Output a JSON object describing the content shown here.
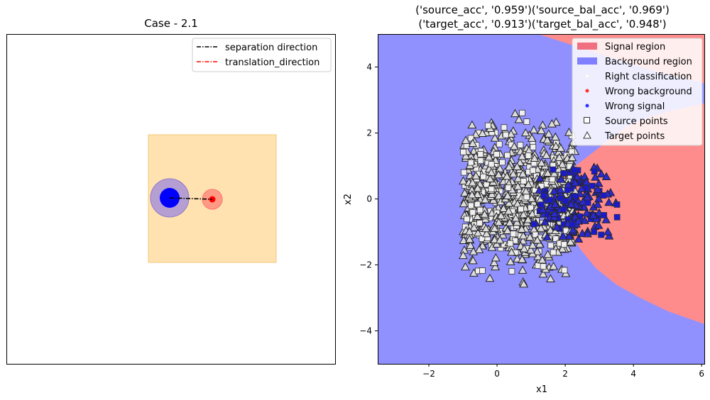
{
  "chart_data": [
    {
      "type": "diagram",
      "title": "Case - 2.1",
      "legend": {
        "placement": "upper-right",
        "entries": [
          {
            "label": "separation direction",
            "color": "#000000",
            "style": "dash-dot"
          },
          {
            "label": "translation_direction",
            "color": "#ff0000",
            "style": "dash-dot"
          }
        ]
      },
      "colors": {
        "square": "#ffe2b0",
        "source_circle": "#0000ff",
        "source_halo": "#b0a0d0",
        "target_circle": "#ff0000",
        "target_halo": "#ff9f9f"
      }
    },
    {
      "type": "scatter",
      "title_line1": "('source_acc', '0.959')('source_bal_acc', '0.969')",
      "title_line2": "('target_acc', '0.913')('target_bal_acc', '0.948')",
      "xlabel": "x1",
      "ylabel": "x2",
      "xlim": [
        -3.5,
        6.1
      ],
      "ylim": [
        -5,
        5
      ],
      "xticks": [
        -2,
        0,
        2,
        4,
        6
      ],
      "yticks": [
        -4,
        -2,
        0,
        2,
        4
      ],
      "background_region_color": "#9090ff",
      "signal_region_color": "#ff8c8c",
      "signal_region_boundary": [
        [
          1.2,
          5
        ],
        [
          4.5,
          3.9
        ],
        [
          6.1,
          3.5
        ],
        [
          6.1,
          -3.8
        ],
        [
          5.0,
          -3.4
        ],
        [
          4.2,
          -3.0
        ],
        [
          3.5,
          -2.6
        ],
        [
          2.9,
          -2.1
        ],
        [
          2.5,
          -1.6
        ],
        [
          2.1,
          -1.0
        ],
        [
          1.7,
          -0.3
        ],
        [
          1.6,
          0.3
        ],
        [
          1.8,
          0.6
        ],
        [
          2.3,
          1.0
        ],
        [
          2.8,
          1.4
        ],
        [
          3.3,
          1.8
        ],
        [
          3.8,
          2.2
        ],
        [
          4.5,
          2.5
        ],
        [
          5.2,
          2.7
        ],
        [
          6.1,
          2.9
        ],
        [
          6.1,
          5
        ]
      ],
      "legend": {
        "placement": "upper-right",
        "entries": [
          {
            "label": "Signal region",
            "marker": "patch",
            "color": "#f07080"
          },
          {
            "label": "Background region",
            "marker": "patch",
            "color": "#7f7fff"
          },
          {
            "label": "Right classification",
            "marker": "dot",
            "color": "#ffffff"
          },
          {
            "label": "Wrong background",
            "marker": "dot",
            "color": "#ff3030"
          },
          {
            "label": "Wrong signal",
            "marker": "dot",
            "color": "#3030ff"
          },
          {
            "label": "Source points",
            "marker": "square",
            "color": "#ffffff"
          },
          {
            "label": "Target points",
            "marker": "triangle",
            "color": "#ffffff"
          }
        ]
      },
      "clusters": [
        {
          "name": "background",
          "center": [
            0.5,
            0.0
          ],
          "x_range": [
            -1.0,
            2.3
          ],
          "y_range": [
            -3.0,
            3.0
          ],
          "color": "#e0e0e0"
        },
        {
          "name": "signal",
          "center": [
            2.3,
            -0.1
          ],
          "x_range": [
            1.3,
            3.9
          ],
          "y_range": [
            -1.5,
            1.2
          ],
          "color": "#1a1acc"
        }
      ]
    }
  ]
}
